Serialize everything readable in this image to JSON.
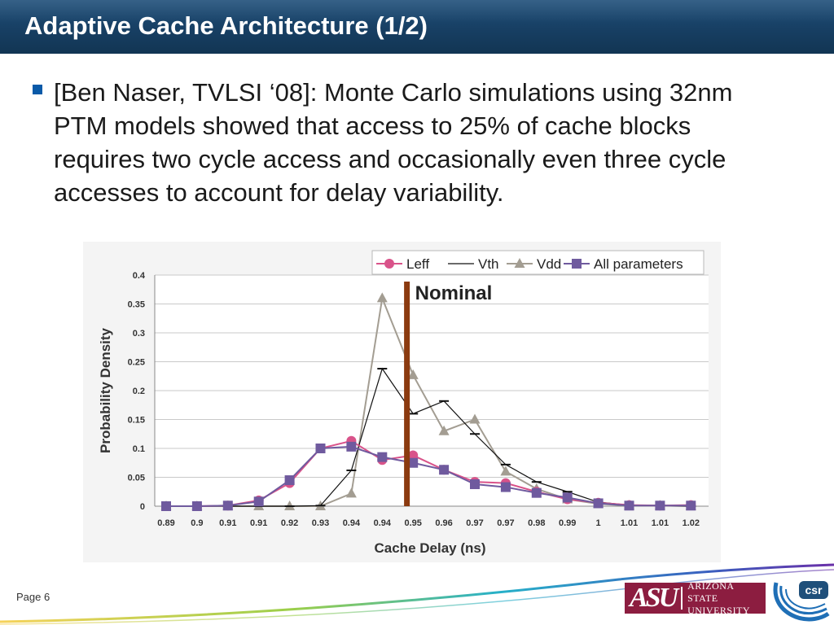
{
  "slide": {
    "title": "Adaptive Cache Architecture (1/2)",
    "bullet": "[Ben Naser, TVLSI ‘08]: Monte Carlo simulations using 32nm PTM models showed that access to 25% of cache blocks requires two cycle access and occasionally even three cycle accesses to account for delay variability."
  },
  "footer": {
    "page_label": "Page 6",
    "asu_mark": "ASU",
    "asu_name_line1": "ARIZONA STATE",
    "asu_name_line2": "UNIVERSITY",
    "csr_label": "csr"
  },
  "colors": {
    "title_bar": "#173f63",
    "leff": "#d9538a",
    "vth": "#111111",
    "vdd": "#a39d92",
    "all": "#6f5a9e",
    "nominal": "#8b3a0f",
    "asu_maroon": "#8c1d40"
  },
  "chart_data": {
    "type": "line",
    "xlabel": "Cache Delay (ns)",
    "ylabel": "Probability Density",
    "ylim": [
      0,
      0.4
    ],
    "yticks": [
      "0",
      "0.05",
      "0.1",
      "0.15",
      "0.2",
      "0.25",
      "0.3",
      "0.35",
      "0.4"
    ],
    "categories": [
      "0.89",
      "0.9",
      "0.91",
      "0.91",
      "0.92",
      "0.93",
      "0.94",
      "0.94",
      "0.95",
      "0.96",
      "0.97",
      "0.97",
      "0.98",
      "0.99",
      "1",
      "1.01",
      "1.01",
      "1.02"
    ],
    "legend_position": "top-right",
    "grid": true,
    "annotation": {
      "label": "Nominal",
      "at_index": 7.8
    },
    "series": [
      {
        "name": "Leff",
        "marker": "circle",
        "color": "#d9538a",
        "values": [
          0,
          0,
          0.001,
          0.01,
          0.04,
          0.1,
          0.113,
          0.08,
          0.088,
          0.063,
          0.042,
          0.04,
          0.025,
          0.012,
          0.006,
          0.002,
          0.001,
          0.002
        ]
      },
      {
        "name": "Vth",
        "marker": "dash",
        "color": "#111111",
        "values": [
          0,
          0,
          0,
          0,
          0,
          0.001,
          0.062,
          0.238,
          0.16,
          0.182,
          0.125,
          0.072,
          0.042,
          0.025,
          0.007,
          0.002,
          0.001,
          0
        ]
      },
      {
        "name": "Vdd",
        "marker": "triangle",
        "color": "#a39d92",
        "values": [
          0,
          0,
          0,
          0,
          0,
          0,
          0.022,
          0.36,
          0.227,
          0.13,
          0.15,
          0.06,
          0.03,
          0.012,
          0.004,
          0.001,
          0.001,
          0
        ]
      },
      {
        "name": "All parameters",
        "marker": "square",
        "color": "#6f5a9e",
        "values": [
          0,
          0,
          0.001,
          0.008,
          0.045,
          0.1,
          0.103,
          0.085,
          0.075,
          0.063,
          0.038,
          0.033,
          0.023,
          0.015,
          0.005,
          0.001,
          0.001,
          0.001
        ]
      }
    ]
  }
}
